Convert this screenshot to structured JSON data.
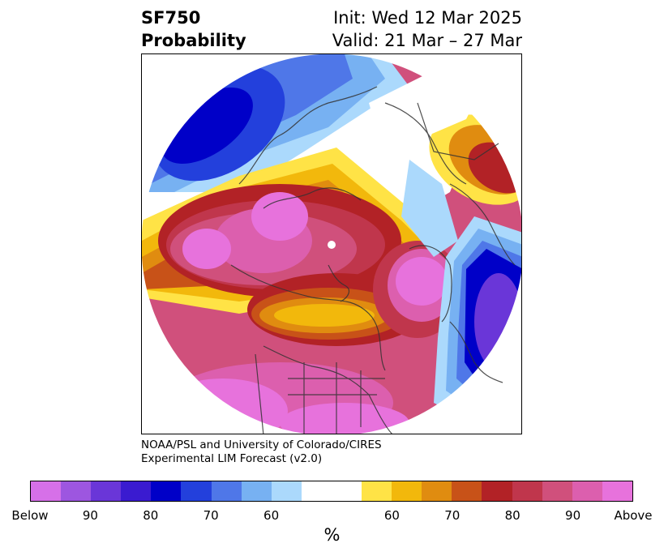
{
  "header": {
    "title_line1": "SF750",
    "title_line2": "Probability",
    "init_label": "Init: Wed 12 Mar 2025",
    "valid_label": "Valid: 21 Mar – 27 Mar"
  },
  "credit": {
    "line1": "NOAA/PSL and University of Colorado/CIRES",
    "line2": "Experimental LIM Forecast (v2.0)"
  },
  "colorbar": {
    "unit": "%",
    "colors": [
      "#d670e8",
      "#9d56e0",
      "#6a36d8",
      "#3a1bd0",
      "#0000c8",
      "#2340dc",
      "#4f77e8",
      "#77b1f2",
      "#abd9fc",
      "#ffffff",
      "#ffe346",
      "#f2b80c",
      "#e08c10",
      "#c85218",
      "#b22226",
      "#c0364c",
      "#d0507c",
      "#dc5fae",
      "#e772dc"
    ],
    "tick_labels": [
      "Below",
      "90",
      "80",
      "70",
      "60",
      "60",
      "70",
      "80",
      "90",
      "Above"
    ]
  }
}
